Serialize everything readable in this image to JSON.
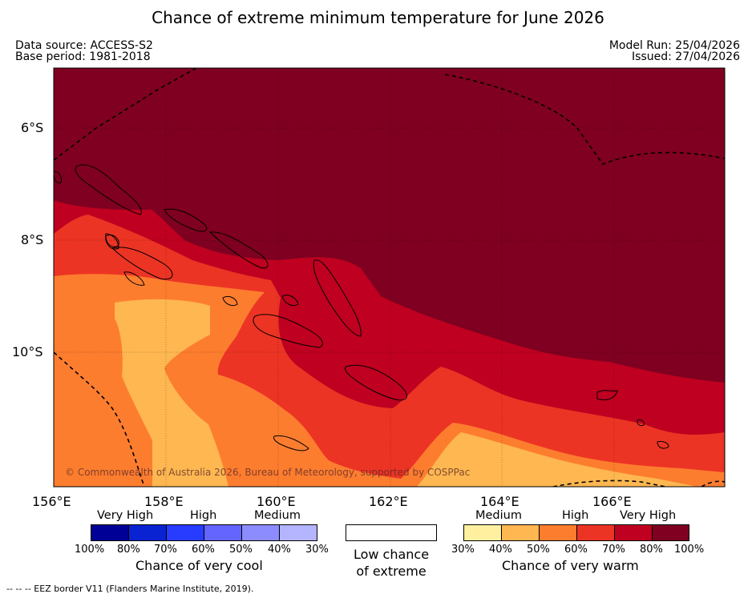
{
  "title": "Chance of extreme minimum temperature for June 2026",
  "meta": {
    "data_source": "Data source: ACCESS-S2",
    "base_period": "Base period: 1981-2018",
    "model_run": "Model Run: 25/04/2026",
    "issued": "Issued: 27/04/2026"
  },
  "map": {
    "lat_labels": [
      "6°S",
      "8°S",
      "10°S"
    ],
    "lon_labels": [
      "156°E",
      "158°E",
      "160°E",
      "162°E",
      "164°E",
      "166°E"
    ],
    "copyright": "© Commonwealth of Australia 2026, Bureau of Meteorology, supported by COSPPac",
    "colors": {
      "very_high_warm": "#7f0020",
      "high_warm_dark": "#bf0020",
      "high_warm": "#ec3424",
      "medium_warm": "#fd7d2f",
      "low_medium_warm": "#feb751"
    }
  },
  "legend": {
    "cool": {
      "groups": [
        "Very High",
        "High",
        "Medium"
      ],
      "ticks": [
        "100%",
        "80%",
        "70%",
        "60%",
        "50%",
        "40%",
        "30%"
      ],
      "colors": [
        "#000096",
        "#0a23d2",
        "#283cff",
        "#6464ff",
        "#8c8cff",
        "#b4b4ff"
      ],
      "caption": "Chance of very cool"
    },
    "neutral": {
      "caption_line1": "Low chance",
      "caption_line2": "of extreme"
    },
    "warm": {
      "groups": [
        "Medium",
        "High",
        "Very High"
      ],
      "ticks": [
        "30%",
        "40%",
        "50%",
        "60%",
        "70%",
        "80%",
        "100%"
      ],
      "colors": [
        "#fff0a0",
        "#feb751",
        "#fd7d2f",
        "#ec3424",
        "#bf0020",
        "#7f0020"
      ],
      "caption": "Chance of very warm"
    }
  },
  "footnote": "--  --  -- EEZ border V11 (Flanders Marine Institute, 2019)."
}
